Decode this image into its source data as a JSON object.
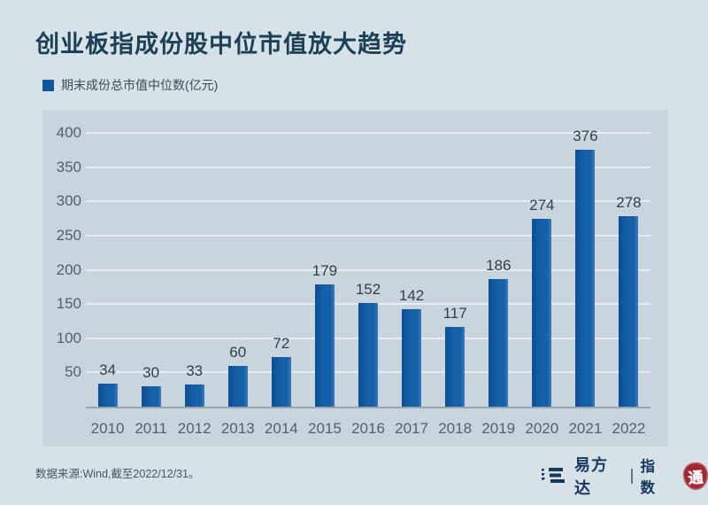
{
  "page": {
    "title": "创业板指成份股中位市值放大趋势",
    "source_note": "数据来源:Wind,截至2022/12/31。"
  },
  "legend": {
    "label": "期末成份总市值中位数(亿元)"
  },
  "footer_logo": {
    "brand": "易方达",
    "suffix": "指数",
    "seal": "通"
  },
  "colors": {
    "bar": "#1560a8",
    "panel_background": "#c9d5dd",
    "page_background": "#d7e1e8",
    "title": "#1c4156",
    "seal_red": "#a32732"
  },
  "chart_data": {
    "type": "bar",
    "title": "创业板指成份股中位市值放大趋势",
    "legend": [
      "期末成份总市值中位数(亿元)"
    ],
    "categories": [
      "2010",
      "2011",
      "2012",
      "2013",
      "2014",
      "2015",
      "2016",
      "2017",
      "2018",
      "2019",
      "2020",
      "2021",
      "2022"
    ],
    "values": [
      34,
      30,
      33,
      60,
      72,
      179,
      152,
      142,
      117,
      186,
      274,
      376,
      278
    ],
    "xlabel": "",
    "ylabel": "期末成份总市值中位数(亿元)",
    "ylim": [
      0,
      400
    ],
    "yticks": [
      50,
      100,
      150,
      200,
      250,
      300,
      350,
      400
    ],
    "grid": true,
    "value_labels": true,
    "legend_position": "top-left"
  }
}
